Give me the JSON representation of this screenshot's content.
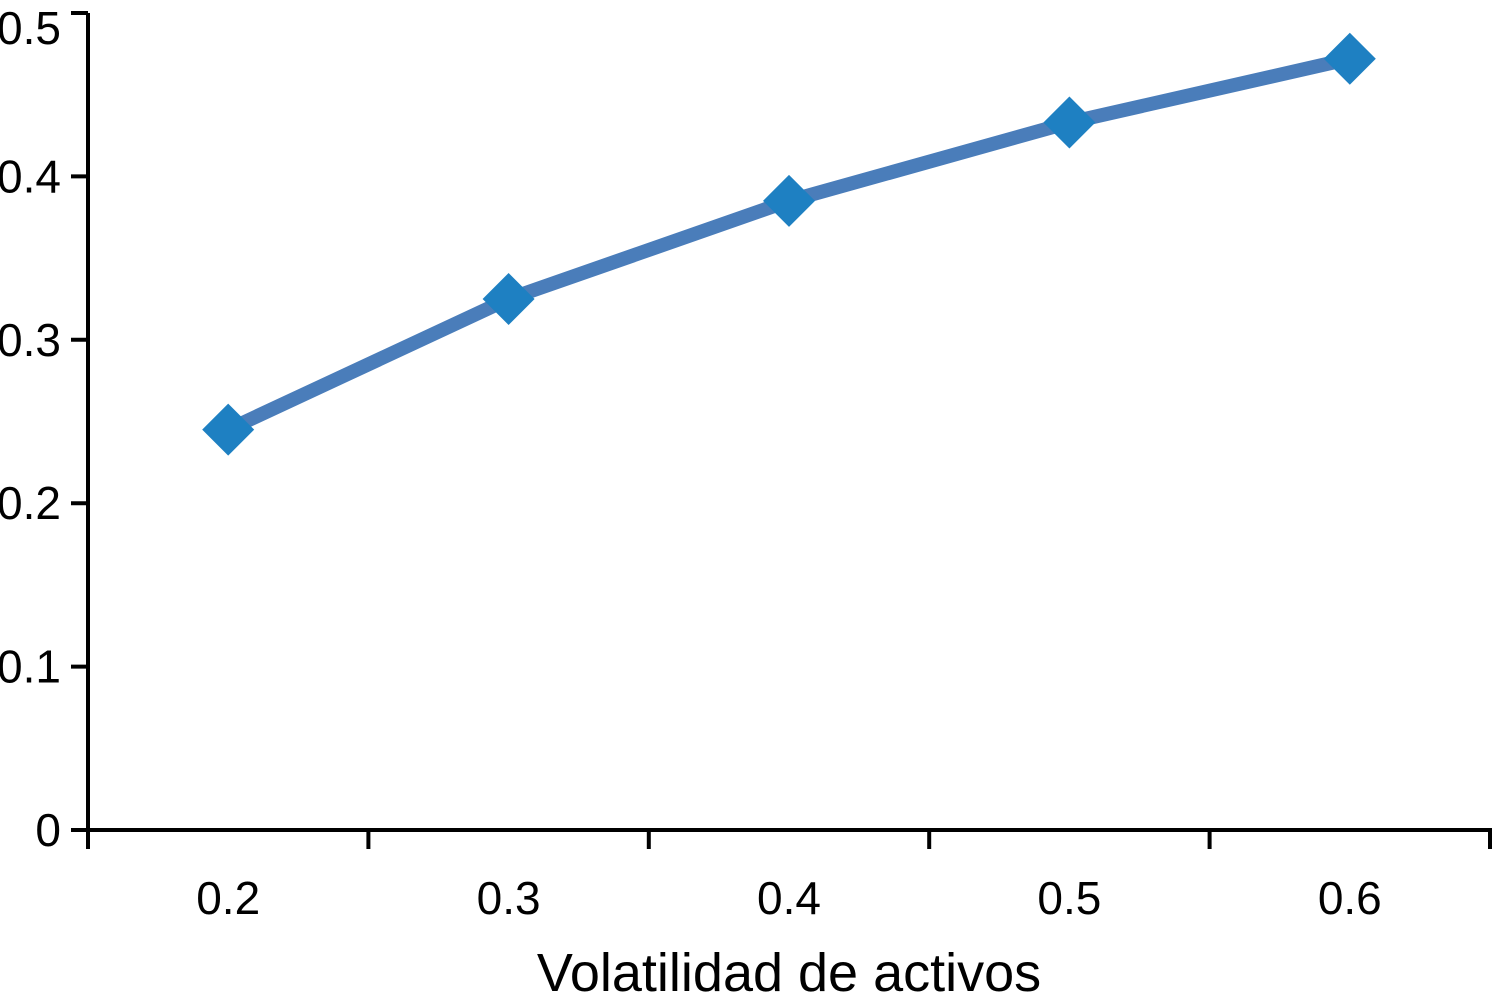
{
  "chart_data": {
    "type": "line",
    "categories": [
      "0.2",
      "0.3",
      "0.4",
      "0.5",
      "0.6"
    ],
    "values": [
      0.245,
      0.325,
      0.385,
      0.433,
      0.472
    ],
    "title": "",
    "xlabel": "Volatilidad de activos",
    "ylabel": "",
    "ylim": [
      0,
      0.5
    ],
    "yticks": [
      0,
      0.1,
      0.2,
      0.3,
      0.4,
      0.5
    ],
    "ytick_labels": [
      "0",
      "0.1",
      "0.2",
      "0.3",
      "0.4",
      "0.5"
    ],
    "grid": false,
    "legend": false,
    "marker": "diamond",
    "colors": {
      "line": "#4a7dba",
      "marker": "#1e80c2",
      "axis": "#000000",
      "text": "#000000"
    }
  }
}
